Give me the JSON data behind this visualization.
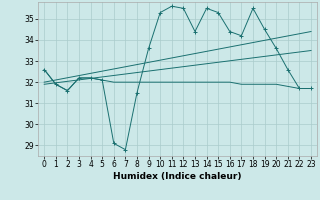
{
  "xlabel": "Humidex (Indice chaleur)",
  "bg_color": "#cce8e8",
  "line_color": "#1a7070",
  "grid_color": "#aacccc",
  "xlim": [
    -0.5,
    23.5
  ],
  "ylim": [
    28.5,
    35.8
  ],
  "yticks": [
    29,
    30,
    31,
    32,
    33,
    34,
    35
  ],
  "xticks": [
    0,
    1,
    2,
    3,
    4,
    5,
    6,
    7,
    8,
    9,
    10,
    11,
    12,
    13,
    14,
    15,
    16,
    17,
    18,
    19,
    20,
    21,
    22,
    23
  ],
  "series1_x": [
    0,
    1,
    2,
    3,
    4,
    5,
    6,
    7,
    8,
    9,
    10,
    11,
    12,
    13,
    14,
    15,
    16,
    17,
    18,
    19,
    20,
    21,
    22,
    23
  ],
  "series1_y": [
    32.6,
    31.9,
    31.6,
    32.2,
    32.2,
    32.1,
    32.0,
    32.0,
    32.0,
    32.0,
    32.0,
    32.0,
    32.0,
    32.0,
    32.0,
    32.0,
    32.0,
    31.9,
    31.9,
    31.9,
    31.9,
    31.8,
    31.7,
    31.7
  ],
  "series2_x": [
    0,
    1,
    2,
    3,
    4,
    5,
    6,
    7,
    8,
    9,
    10,
    11,
    12,
    13,
    14,
    15,
    16,
    17,
    18,
    19,
    20,
    21,
    22,
    23
  ],
  "series2_y": [
    32.6,
    31.9,
    31.6,
    32.2,
    32.2,
    32.1,
    29.1,
    28.8,
    31.5,
    33.6,
    35.3,
    35.6,
    35.5,
    34.4,
    35.5,
    35.3,
    34.4,
    34.2,
    35.5,
    34.5,
    33.6,
    32.6,
    31.7,
    31.7
  ],
  "series3_x": [
    0,
    23
  ],
  "series3_y": [
    32.0,
    34.4
  ],
  "series4_x": [
    0,
    23
  ],
  "series4_y": [
    31.9,
    33.5
  ]
}
